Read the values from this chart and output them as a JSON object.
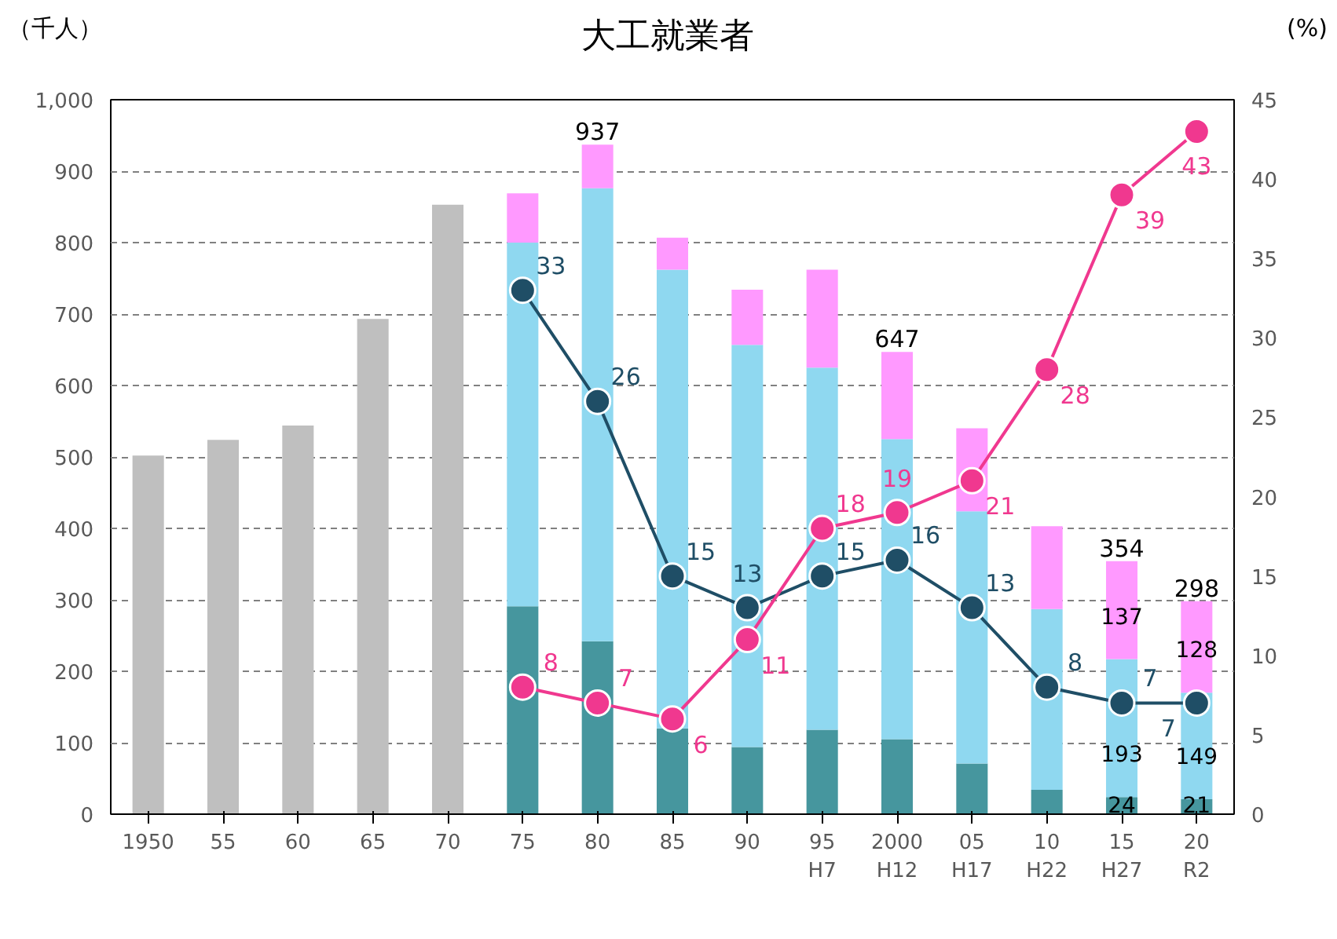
{
  "chart_data": {
    "type": "bar",
    "title": "大工就業者",
    "ylabel": "（千人）",
    "y2label": "(%)",
    "categories": [
      "1950",
      "55",
      "60",
      "65",
      "70",
      "75",
      "80",
      "85",
      "90",
      "95\nH7",
      "2000\nH12",
      "05\nH17",
      "10\nH22",
      "15\nH27",
      "20\nR2"
    ],
    "stacked": true,
    "series": [
      {
        "color": "#bfbfbf",
        "values": [
          502,
          524,
          544,
          693,
          853,
          null,
          null,
          null,
          null,
          null,
          null,
          null,
          null,
          null,
          null
        ]
      },
      {
        "color": "#46969e",
        "values": [
          null,
          null,
          null,
          null,
          null,
          291,
          242,
          120,
          94,
          118,
          105,
          71,
          34,
          24,
          21
        ],
        "value_labels": [
          null,
          null,
          null,
          null,
          null,
          null,
          null,
          null,
          null,
          null,
          null,
          null,
          null,
          "24",
          "21"
        ]
      },
      {
        "color": "#8fd8f0",
        "values": [
          null,
          null,
          null,
          null,
          null,
          509,
          634,
          642,
          563,
          507,
          420,
          353,
          253,
          193,
          149
        ],
        "value_labels": [
          null,
          null,
          null,
          null,
          null,
          null,
          null,
          null,
          null,
          null,
          null,
          null,
          null,
          "193",
          "149"
        ]
      },
      {
        "color": "#ff99ff",
        "values": [
          null,
          null,
          null,
          null,
          null,
          69,
          61,
          45,
          77,
          137,
          122,
          116,
          116,
          137,
          128
        ],
        "value_labels": [
          null,
          null,
          null,
          null,
          null,
          null,
          null,
          null,
          null,
          null,
          null,
          null,
          null,
          "137",
          "128"
        ]
      },
      {
        "type": "line",
        "axis": "y2",
        "color": "#1f4e66",
        "marker": "circle",
        "data_labels": true,
        "values": [
          null,
          null,
          null,
          null,
          null,
          33,
          26,
          15,
          13,
          15,
          16,
          13,
          8,
          7,
          7
        ]
      },
      {
        "type": "line",
        "axis": "y2",
        "color": "#f0388f",
        "marker": "circle",
        "data_labels": true,
        "values": [
          null,
          null,
          null,
          null,
          null,
          8,
          7,
          6,
          11,
          18,
          19,
          21,
          28,
          39,
          43
        ]
      }
    ],
    "totals": [
      null,
      null,
      null,
      null,
      null,
      null,
      "937",
      null,
      null,
      null,
      "647",
      null,
      null,
      "354",
      "298"
    ],
    "ylim": [
      0,
      1000
    ],
    "yticks": [
      0,
      100,
      200,
      300,
      400,
      500,
      600,
      700,
      800,
      900,
      {
        "value": 1000,
        "label": "1,000"
      }
    ],
    "y2lim": [
      0,
      45
    ],
    "y2ticks": [
      0,
      5,
      10,
      15,
      20,
      25,
      30,
      35,
      40,
      45
    ],
    "grid": "y"
  }
}
